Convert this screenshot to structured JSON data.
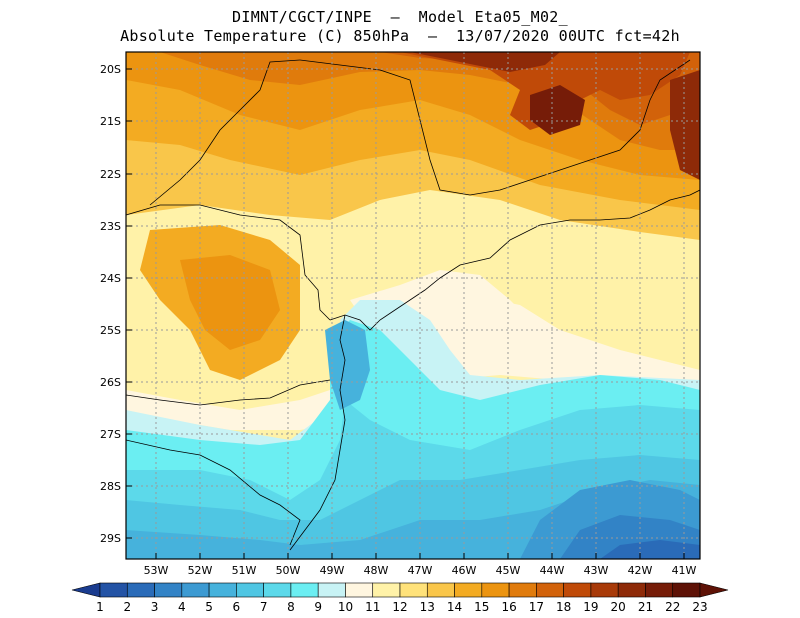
{
  "header": {
    "line1": "DIMNT/CGCT/INPE  –  Model Eta05_M02_",
    "line2": "Absolute Temperature (C) 850hPa  –  13/07/2020 00UTC fct=42h"
  },
  "map": {
    "lat_labels": [
      "20S",
      "21S",
      "22S",
      "23S",
      "24S",
      "25S",
      "26S",
      "27S",
      "28S",
      "29S"
    ],
    "lon_labels": [
      "53W",
      "52W",
      "51W",
      "50W",
      "49W",
      "48W",
      "47W",
      "46W",
      "45W",
      "44W",
      "43W",
      "42W",
      "41W"
    ]
  },
  "colorbar": {
    "labels": [
      "1",
      "2",
      "3",
      "4",
      "5",
      "6",
      "7",
      "8",
      "9",
      "10",
      "11",
      "12",
      "13",
      "14",
      "15",
      "16",
      "17",
      "18",
      "19",
      "20",
      "21",
      "22",
      "23"
    ],
    "colors": [
      "#1a3c8f",
      "#2353a5",
      "#2a6bb8",
      "#3283c6",
      "#3c9ad2",
      "#46b2dc",
      "#4fc6e3",
      "#5cd9ea",
      "#6beef2",
      "#c8f3f5",
      "#fff6e0",
      "#fff2a8",
      "#ffe27a",
      "#f9c64a",
      "#f3ab22",
      "#ec9410",
      "#e07b0c",
      "#d2620a",
      "#c04a08",
      "#a83a08",
      "#8e2a08",
      "#761c08",
      "#5e1206"
    ]
  }
}
